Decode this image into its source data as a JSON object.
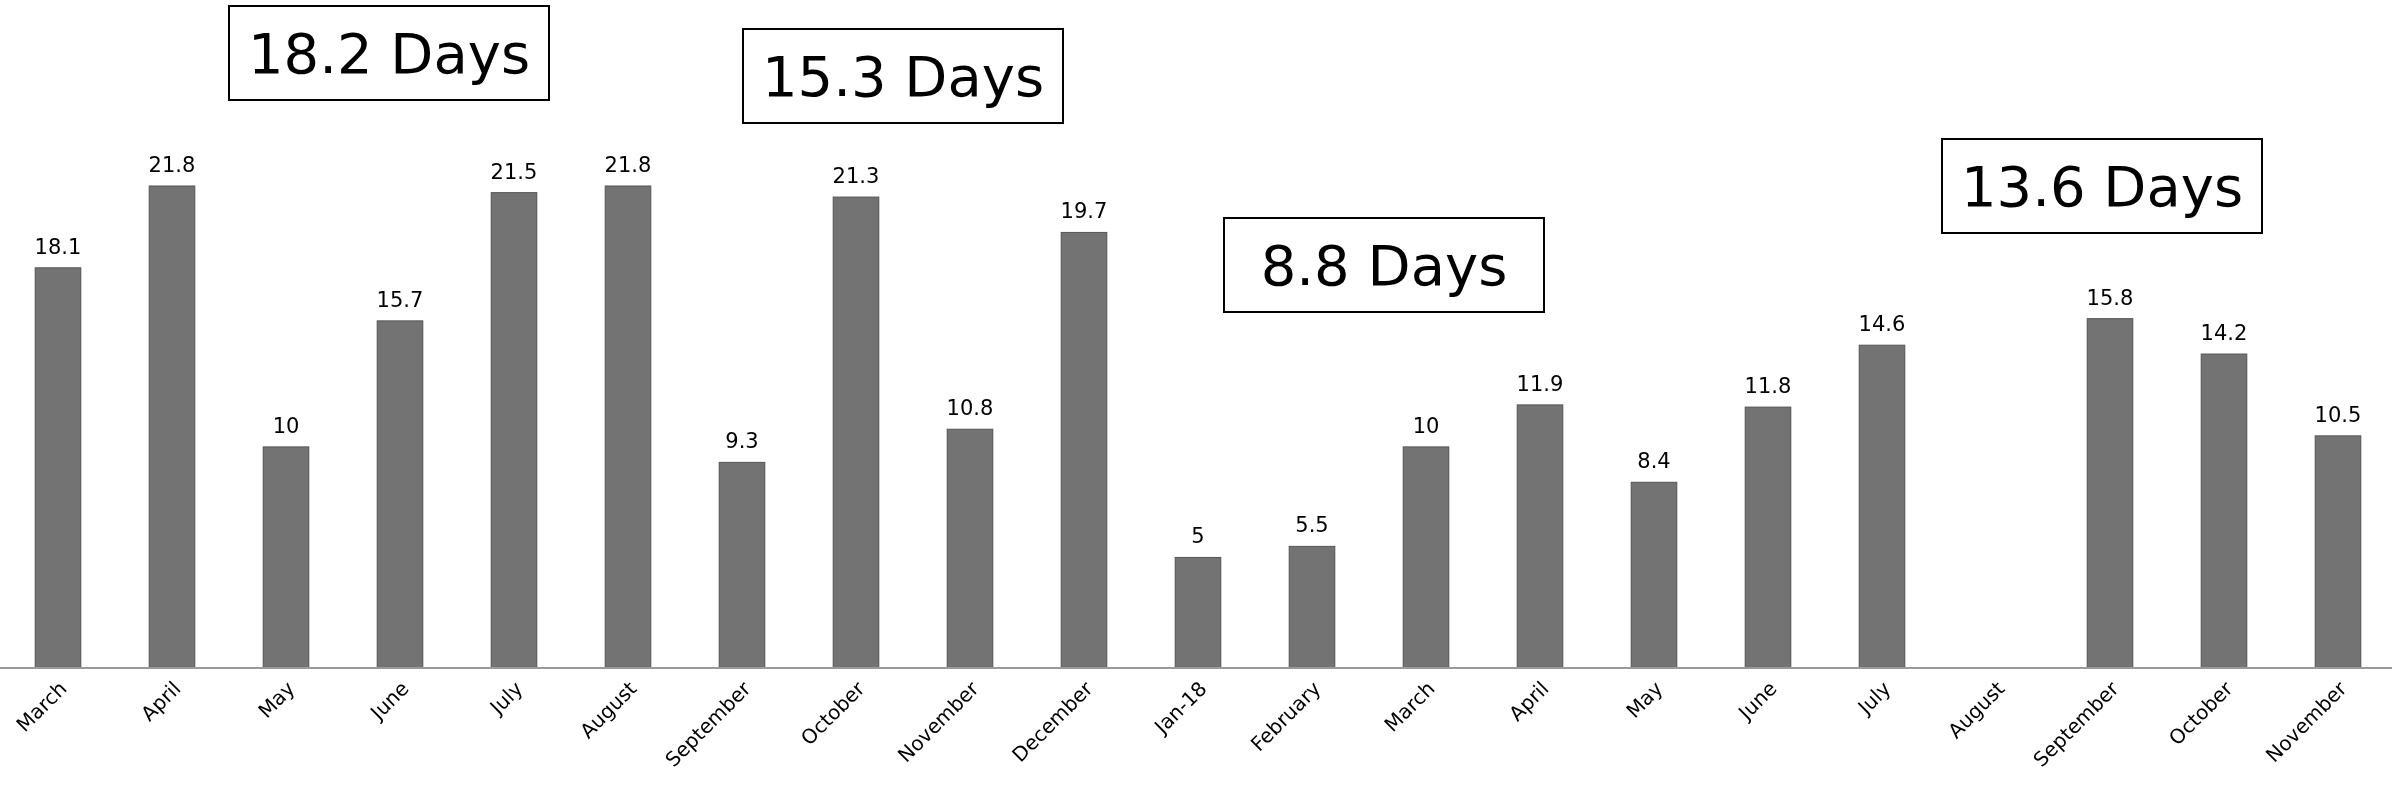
{
  "chart_data": {
    "type": "bar",
    "categories": [
      "March",
      "April",
      "May",
      "June",
      "July",
      "August",
      "September",
      "October",
      "November",
      "December",
      "Jan-18",
      "February",
      "March",
      "April",
      "May",
      "June",
      "July",
      "August",
      "September",
      "October",
      "November"
    ],
    "values": [
      18.1,
      21.8,
      10,
      15.7,
      21.5,
      21.8,
      9.3,
      21.3,
      10.8,
      19.7,
      5,
      5.5,
      10,
      11.9,
      8.4,
      11.8,
      14.6,
      null,
      15.8,
      14.2,
      10.5
    ],
    "color": "#737373",
    "data_labels": true,
    "annotations": [
      "18.2 Days",
      "15.3 Days",
      "8.8 Days",
      "13.6 Days"
    ]
  }
}
